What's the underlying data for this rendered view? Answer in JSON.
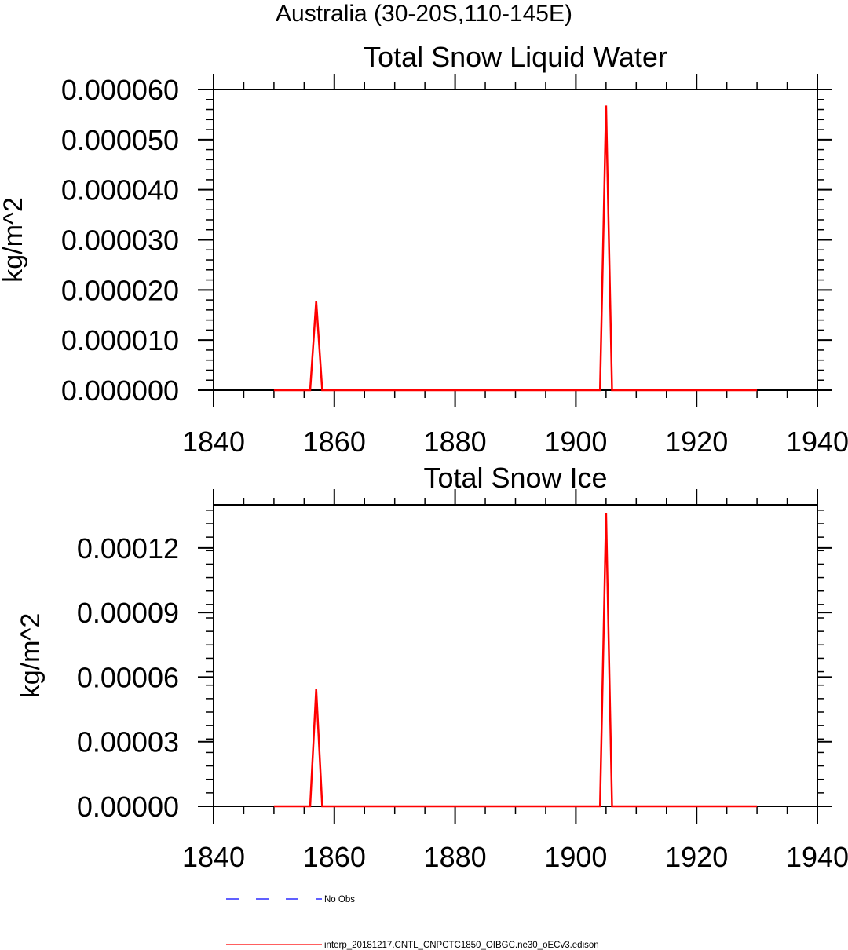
{
  "figure": {
    "suptitle": "Australia (30-20S,110-145E)"
  },
  "chart_data": [
    {
      "type": "line",
      "title": "Total Snow Liquid Water",
      "xlabel": "",
      "ylabel": "kg/m^2",
      "xlim": [
        1840,
        1940
      ],
      "ylim": [
        0,
        6e-05
      ],
      "x_ticks": [
        1840,
        1860,
        1880,
        1900,
        1920,
        1940
      ],
      "y_ticks": [
        "0.000000",
        "0.000010",
        "0.000020",
        "0.000030",
        "0.000040",
        "0.000050",
        "0.000060"
      ],
      "y_tick_values": [
        0,
        1e-05,
        2e-05,
        3e-05,
        4e-05,
        5e-05,
        6e-05
      ],
      "grid": false,
      "series": [
        {
          "name": "interp_20181217.CNTL_CNPCTC1850_OIBGC.ne30_oECv3.edison",
          "color": "#ff0000",
          "style": "solid",
          "x": [
            1850,
            1856,
            1857,
            1858,
            1904,
            1905,
            1906,
            1930
          ],
          "y": [
            0,
            0,
            1.78e-05,
            0,
            0,
            5.68e-05,
            0,
            0
          ]
        }
      ]
    },
    {
      "type": "line",
      "title": "Total Snow Ice",
      "xlabel": "",
      "ylabel": "kg/m^2",
      "xlim": [
        1840,
        1940
      ],
      "ylim": [
        0,
        0.00014
      ],
      "x_ticks": [
        1840,
        1860,
        1880,
        1900,
        1920,
        1940
      ],
      "y_ticks": [
        "0.00000",
        "0.00003",
        "0.00006",
        "0.00009",
        "0.00012"
      ],
      "y_tick_values": [
        0,
        3e-05,
        6e-05,
        9e-05,
        0.00012
      ],
      "grid": false,
      "series": [
        {
          "name": "interp_20181217.CNTL_CNPCTC1850_OIBGC.ne30_oECv3.edison",
          "color": "#ff0000",
          "style": "solid",
          "x": [
            1850,
            1856,
            1857,
            1858,
            1904,
            1905,
            1906,
            1930
          ],
          "y": [
            0,
            0,
            5.45e-05,
            0,
            0,
            0.000136,
            0,
            0
          ]
        }
      ]
    }
  ],
  "legend": {
    "placement": "bottom",
    "items": [
      {
        "label": "No Obs",
        "color": "#0000ff",
        "style": "dashed"
      },
      {
        "label": "interp_20181217.CNTL_CNPCTC1850_OIBGC.ne30_oECv3.edison",
        "color": "#ff0000",
        "style": "solid"
      }
    ]
  }
}
